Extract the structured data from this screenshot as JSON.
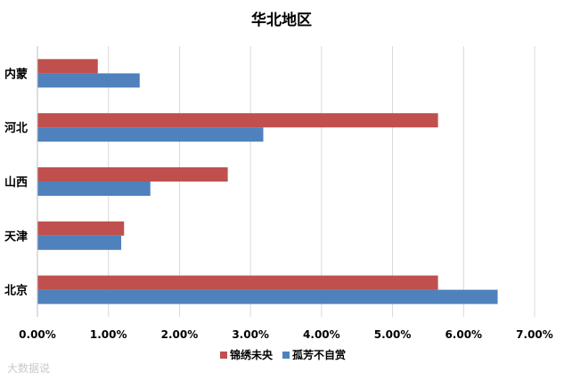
{
  "chart_data": {
    "type": "bar",
    "orientation": "horizontal",
    "title": "华北地区",
    "categories": [
      "内蒙",
      "河北",
      "山西",
      "天津",
      "北京"
    ],
    "series": [
      {
        "name": "锦绣未央",
        "color": "#c0504d",
        "values": [
          0.85,
          5.64,
          2.68,
          1.22,
          5.64
        ]
      },
      {
        "name": "孤芳不自赏",
        "color": "#4f81bd",
        "values": [
          1.44,
          3.18,
          1.59,
          1.18,
          6.48
        ]
      }
    ],
    "xticks": [
      "0.00%",
      "1.00%",
      "2.00%",
      "3.00%",
      "4.00%",
      "5.00%",
      "6.00%",
      "7.00%"
    ],
    "xlim": [
      0,
      7
    ],
    "grid": true,
    "legend": "bottom"
  },
  "watermark": "大数据说"
}
